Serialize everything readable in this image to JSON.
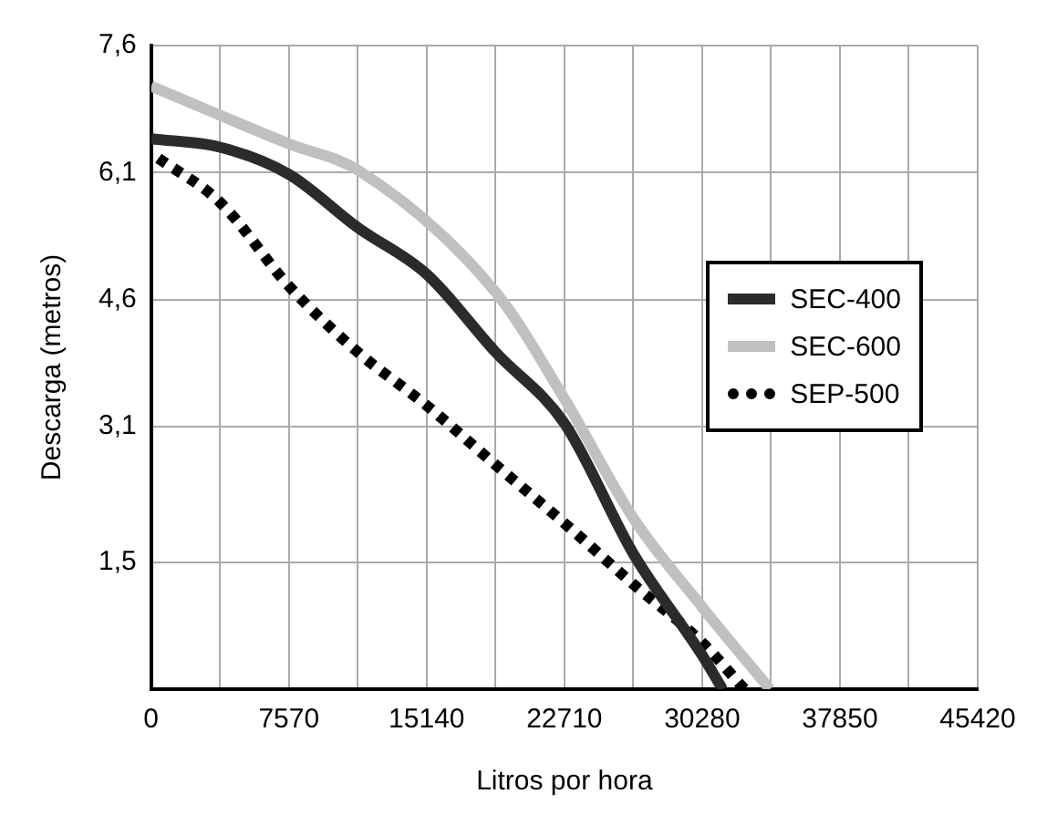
{
  "chart_data": {
    "type": "line",
    "xlabel": "Litros por hora",
    "ylabel": "Descarga (metros)",
    "xlim": [
      0,
      45420
    ],
    "xticks": [
      0,
      {
        "value": 3785,
        "label": null
      },
      7570,
      {
        "value": 11355,
        "label": null
      },
      15140,
      {
        "value": 18925,
        "label": null
      },
      22710,
      {
        "value": 26495,
        "label": null
      },
      30280,
      {
        "value": 34065,
        "label": null
      },
      37850,
      {
        "value": 41635,
        "label": null
      },
      45420
    ],
    "ylim": [
      0,
      7.6
    ],
    "yticks": [
      {
        "value": 1.5,
        "label": "1,5"
      },
      {
        "value": 3.1,
        "label": "3,1"
      },
      {
        "value": 4.6,
        "label": "4,6"
      },
      {
        "value": 6.1,
        "label": "6,1"
      },
      {
        "value": 7.6,
        "label": "7,6"
      }
    ],
    "grid": true,
    "legend": "right",
    "marker": "none",
    "series": [
      {
        "name": "SEC-400",
        "color": "#2b2b2b",
        "line_style": "solid",
        "x": [
          0,
          3785,
          7570,
          11355,
          15140,
          18925,
          22710,
          26495,
          30280,
          31400
        ],
        "values": [
          6.5,
          6.4,
          6.08,
          5.45,
          4.9,
          3.98,
          3.14,
          1.6,
          0.4,
          0
        ]
      },
      {
        "name": "SEC-600",
        "color": "#c0c0c0",
        "line_style": "solid",
        "x": [
          0,
          7570,
          11355,
          18925,
          22710,
          26495,
          30280,
          34000
        ],
        "values": [
          7.12,
          6.44,
          6.13,
          4.69,
          3.43,
          2.02,
          0.97,
          0
        ]
      },
      {
        "name": "SEP-500",
        "color": "#000000",
        "line_style": "dotted",
        "x": [
          400,
          3785,
          7570,
          11355,
          15140,
          18925,
          22710,
          26495,
          30280,
          32600
        ],
        "values": [
          6.27,
          5.75,
          4.76,
          3.98,
          3.35,
          2.65,
          1.96,
          1.24,
          0.55,
          0
        ]
      }
    ]
  }
}
